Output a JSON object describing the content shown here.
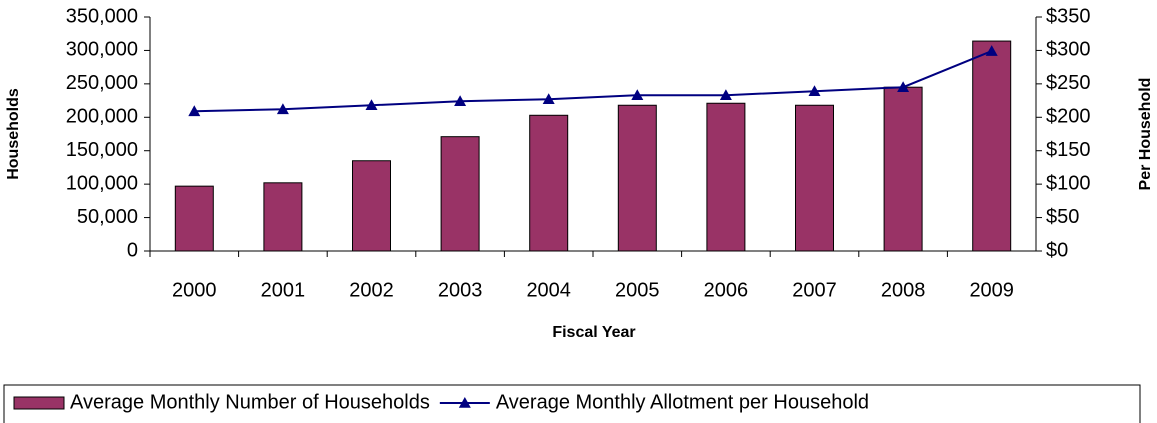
{
  "chart_data": {
    "type": "bar-line",
    "categories": [
      "2000",
      "2001",
      "2002",
      "2003",
      "2004",
      "2005",
      "2006",
      "2007",
      "2008",
      "2009"
    ],
    "series": [
      {
        "name": "Average Monthly Number of Households",
        "type": "bar",
        "color": "#993366",
        "values": [
          97000,
          102000,
          135000,
          171000,
          203000,
          218000,
          221000,
          218000,
          245000,
          314000
        ]
      },
      {
        "name": "Average Monthly Allotment per Household",
        "type": "line",
        "axis": "y2",
        "color": "#000080",
        "values": [
          209,
          212,
          218,
          224,
          227,
          233,
          233,
          239,
          245,
          299
        ]
      }
    ],
    "ylabel": "Households",
    "y2label": "Per Household",
    "xlabel": "Fiscal Year",
    "ylim": [
      0,
      350000
    ],
    "yticks": [
      0,
      {
        "value": 50000,
        "label": "50,000"
      },
      {
        "value": 100000,
        "label": "100,000"
      },
      {
        "value": 150000,
        "label": "150,000"
      },
      {
        "value": 200000,
        "label": "200,000"
      },
      {
        "value": 250000,
        "label": "250,000"
      },
      {
        "value": 300000,
        "label": "300,000"
      },
      {
        "value": 350000,
        "label": "350,000"
      }
    ],
    "y2lim": [
      0,
      350
    ],
    "y2ticks": [
      {
        "value": 0,
        "label": "$0"
      },
      {
        "value": 50,
        "label": "$50"
      },
      {
        "value": 100,
        "label": "$100"
      },
      {
        "value": 150,
        "label": "$150"
      },
      {
        "value": 200,
        "label": "$200"
      },
      {
        "value": 250,
        "label": "$250"
      },
      {
        "value": 300,
        "label": "$300"
      },
      {
        "value": 350,
        "label": "$350"
      }
    ],
    "legend": "bottom"
  }
}
